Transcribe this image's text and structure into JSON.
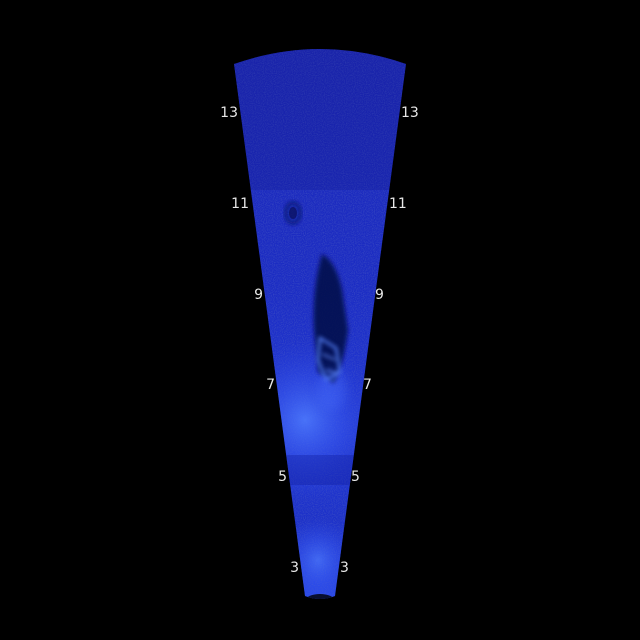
{
  "view": {
    "background": "#000000",
    "fan_color": "#1f2fd0",
    "near_glow_color": "#3a63ff",
    "target_color": "#08124a",
    "target_edge_color": "#5a86ff"
  },
  "range_labels": {
    "left": [
      "13",
      "11",
      "9",
      "7",
      "5",
      "3"
    ],
    "right": [
      "13",
      "11",
      "9",
      "7",
      "5",
      "3"
    ]
  }
}
